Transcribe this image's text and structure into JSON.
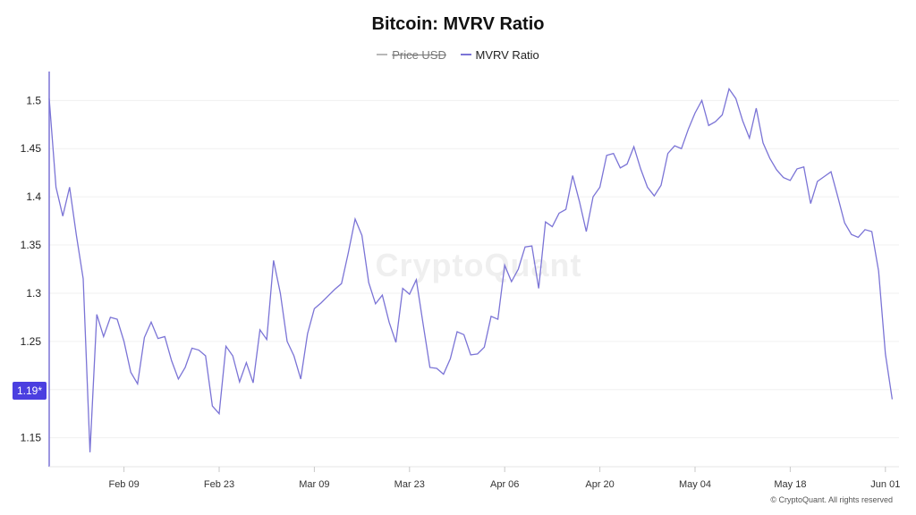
{
  "colors": {
    "mvrv": "#7b74d6",
    "price": "#b8b8b8",
    "badge": "#4b3fe0",
    "axis": "#7b74d6",
    "grid": "#f0f0f0"
  },
  "watermark": "CryptoQuant",
  "copyright": "© CryptoQuant. All rights reserved",
  "current_value_label": "1.19*",
  "chart_data": {
    "type": "line",
    "title": "Bitcoin: MVRV Ratio",
    "legend_position": "top-center",
    "grid": true,
    "xlim": [
      "2025-01-29",
      "2025-06-03"
    ],
    "ylim": [
      1.12,
      1.53
    ],
    "y_ticks": [
      "1.15",
      "1.2",
      "1.25",
      "1.3",
      "1.35",
      "1.4",
      "1.45",
      "1.5"
    ],
    "x_ticks": [
      {
        "date": "2025-02-09",
        "label": "Feb 09"
      },
      {
        "date": "2025-02-23",
        "label": "Feb 23"
      },
      {
        "date": "2025-03-09",
        "label": "Mar 09"
      },
      {
        "date": "2025-03-23",
        "label": "Mar 23"
      },
      {
        "date": "2025-04-06",
        "label": "Apr 06"
      },
      {
        "date": "2025-04-20",
        "label": "Apr 20"
      },
      {
        "date": "2025-05-04",
        "label": "May 04"
      },
      {
        "date": "2025-05-18",
        "label": "May 18"
      },
      {
        "date": "2025-06-01",
        "label": "Jun 01"
      }
    ],
    "series": [
      {
        "name": "Price USD",
        "visible": false,
        "values": []
      },
      {
        "name": "MVRV Ratio",
        "visible": true,
        "start_date": "2025-01-29",
        "values": [
          1.502,
          1.41,
          1.38,
          1.41,
          1.36,
          1.315,
          1.135,
          1.278,
          1.255,
          1.275,
          1.273,
          1.25,
          1.218,
          1.206,
          1.254,
          1.27,
          1.253,
          1.255,
          1.23,
          1.211,
          1.223,
          1.243,
          1.241,
          1.235,
          1.183,
          1.175,
          1.245,
          1.235,
          1.208,
          1.228,
          1.207,
          1.262,
          1.252,
          1.334,
          1.3,
          1.25,
          1.235,
          1.211,
          1.258,
          1.284,
          1.29,
          1.297,
          1.304,
          1.31,
          1.342,
          1.377,
          1.36,
          1.311,
          1.289,
          1.298,
          1.27,
          1.249,
          1.305,
          1.299,
          1.314,
          1.268,
          1.223,
          1.222,
          1.216,
          1.232,
          1.26,
          1.257,
          1.236,
          1.237,
          1.244,
          1.276,
          1.273,
          1.329,
          1.312,
          1.325,
          1.348,
          1.349,
          1.305,
          1.374,
          1.369,
          1.383,
          1.387,
          1.422,
          1.395,
          1.364,
          1.4,
          1.41,
          1.443,
          1.445,
          1.43,
          1.434,
          1.452,
          1.429,
          1.41,
          1.401,
          1.412,
          1.445,
          1.453,
          1.45,
          1.47,
          1.487,
          1.5,
          1.474,
          1.478,
          1.485,
          1.512,
          1.502,
          1.479,
          1.461,
          1.492,
          1.456,
          1.44,
          1.428,
          1.42,
          1.417,
          1.429,
          1.431,
          1.393,
          1.416,
          1.421,
          1.426,
          1.4,
          1.373,
          1.361,
          1.358,
          1.366,
          1.364,
          1.323,
          1.237,
          1.19
        ]
      }
    ]
  }
}
